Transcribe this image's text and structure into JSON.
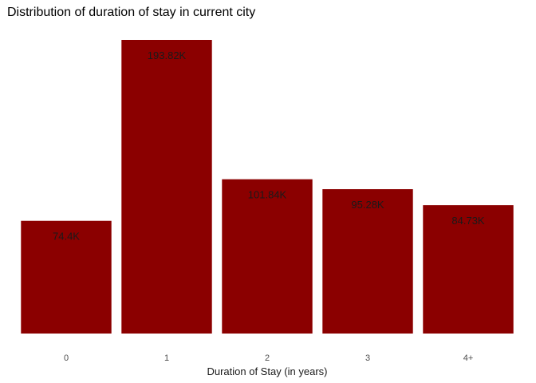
{
  "chart_data": {
    "type": "bar",
    "title": "Distribution of duration of stay in current city",
    "xlabel": "Duration of Stay (in years)",
    "ylabel": "",
    "categories": [
      "0",
      "1",
      "2",
      "3",
      "4+"
    ],
    "values": [
      74400,
      193820,
      101840,
      95280,
      84730
    ],
    "data_labels": [
      "74.4K",
      "193.82K",
      "101.84K",
      "95.28K",
      "84.73K"
    ],
    "ylim": [
      0,
      193820
    ],
    "y_axis_visible": false,
    "grid": false,
    "legend": "none",
    "bar_color": "#8B0000"
  }
}
